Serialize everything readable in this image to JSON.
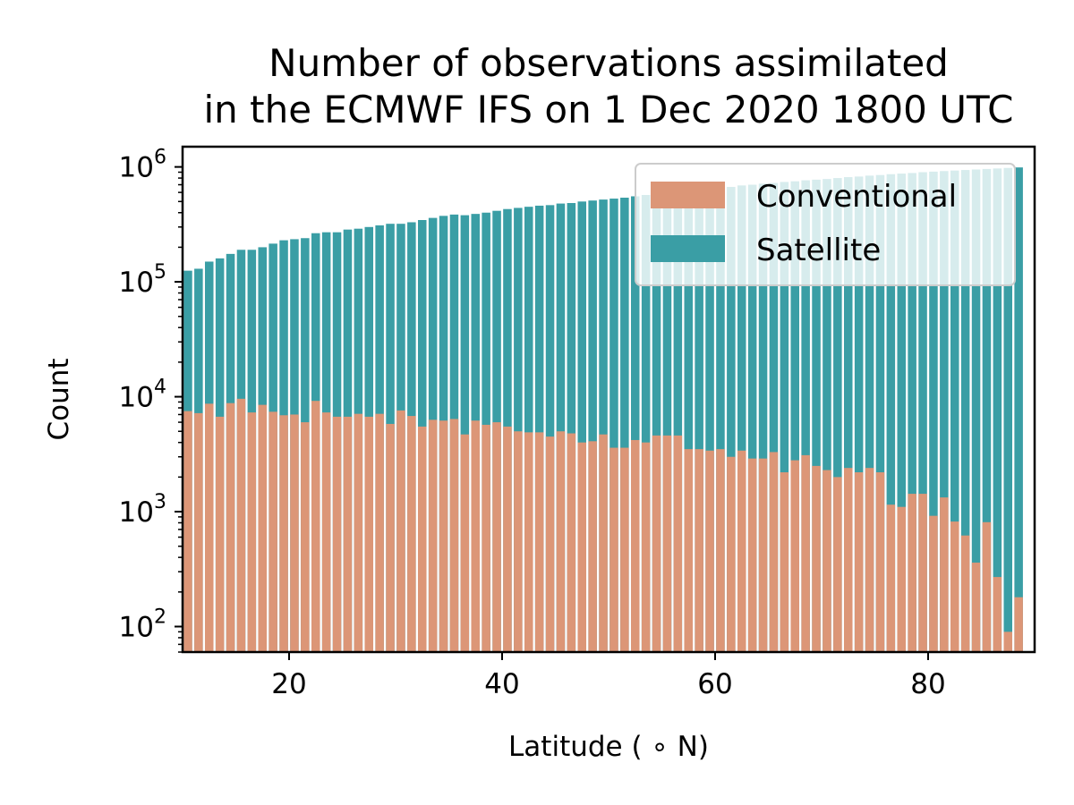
{
  "chart_data": {
    "type": "bar",
    "title": "Number of observations assimilated\nin the ECMWF IFS on 1 Dec 2020 1800 UTC",
    "xlabel": "Latitude ( ∘ N)",
    "ylabel": "Count",
    "xlim": [
      10,
      90
    ],
    "ylim": [
      60,
      1500000
    ],
    "yscale": "log",
    "xticks": [
      20,
      40,
      60,
      80
    ],
    "yticks": [
      {
        "value": 100,
        "base": "10",
        "exp": "2"
      },
      {
        "value": 1000,
        "base": "10",
        "exp": "3"
      },
      {
        "value": 10000,
        "base": "10",
        "exp": "4"
      },
      {
        "value": 100000,
        "base": "10",
        "exp": "5"
      },
      {
        "value": 1000000,
        "base": "10",
        "exp": "6"
      }
    ],
    "bar_width": 0.8,
    "legend_position": "upper right",
    "x": [
      10.5,
      11.5,
      12.5,
      13.5,
      14.5,
      15.5,
      16.5,
      17.5,
      18.5,
      19.5,
      20.5,
      21.5,
      22.5,
      23.5,
      24.5,
      25.5,
      26.5,
      27.5,
      28.5,
      29.5,
      30.5,
      31.5,
      32.5,
      33.5,
      34.5,
      35.5,
      36.5,
      37.5,
      38.5,
      39.5,
      40.5,
      41.5,
      42.5,
      43.5,
      44.5,
      45.5,
      46.5,
      47.5,
      48.5,
      49.5,
      50.5,
      51.5,
      52.5,
      53.5,
      54.5,
      55.5,
      56.5,
      57.5,
      58.5,
      59.5,
      60.5,
      61.5,
      62.5,
      63.5,
      64.5,
      65.5,
      66.5,
      67.5,
      68.5,
      69.5,
      70.5,
      71.5,
      72.5,
      73.5,
      74.5,
      75.5,
      76.5,
      77.5,
      78.5,
      79.5,
      80.5,
      81.5,
      82.5,
      83.5,
      84.5,
      85.5,
      86.5,
      87.5,
      88.5
    ],
    "series": [
      {
        "name": "Satellite",
        "color": "#3a9ea5",
        "values": [
          125000,
          130000,
          150000,
          160000,
          175000,
          190000,
          190000,
          200000,
          215000,
          230000,
          235000,
          240000,
          265000,
          270000,
          270000,
          285000,
          290000,
          300000,
          310000,
          320000,
          320000,
          330000,
          345000,
          360000,
          375000,
          385000,
          380000,
          390000,
          400000,
          415000,
          430000,
          440000,
          450000,
          460000,
          465000,
          480000,
          485000,
          500000,
          510000,
          520000,
          530000,
          540000,
          555000,
          570000,
          580000,
          600000,
          610000,
          625000,
          640000,
          650000,
          660000,
          670000,
          690000,
          700000,
          715000,
          725000,
          740000,
          750000,
          765000,
          775000,
          785000,
          800000,
          815000,
          825000,
          840000,
          850000,
          865000,
          875000,
          885000,
          900000,
          910000,
          920000,
          930000,
          940000,
          950000,
          960000,
          970000,
          980000,
          990000
        ]
      },
      {
        "name": "Conventional",
        "color": "#dc9677",
        "values": [
          7500,
          7200,
          8700,
          6700,
          8800,
          9600,
          7300,
          8500,
          7400,
          6900,
          7000,
          6000,
          9200,
          7300,
          6700,
          6700,
          7100,
          6700,
          7100,
          5800,
          7600,
          6800,
          5500,
          6300,
          6200,
          6400,
          4700,
          6200,
          5700,
          6000,
          5500,
          5000,
          4900,
          4900,
          4500,
          5000,
          4800,
          4000,
          4100,
          4700,
          3600,
          3600,
          4200,
          4000,
          4600,
          4600,
          4600,
          3500,
          3500,
          3400,
          3500,
          3000,
          3400,
          2900,
          2900,
          3300,
          2200,
          2800,
          3100,
          2500,
          2300,
          2000,
          2400,
          2200,
          2400,
          2200,
          1150,
          1100,
          1430,
          1430,
          920,
          1330,
          820,
          620,
          360,
          810,
          270,
          90,
          180
        ]
      }
    ],
    "legend": [
      {
        "label": "Conventional",
        "color": "#dc9677"
      },
      {
        "label": "Satellite",
        "color": "#3a9ea5"
      }
    ]
  }
}
